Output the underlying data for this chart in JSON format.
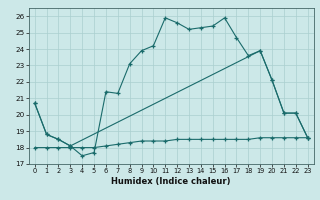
{
  "xlabel": "Humidex (Indice chaleur)",
  "xlim": [
    -0.5,
    23.5
  ],
  "ylim": [
    17,
    26.5
  ],
  "yticks": [
    17,
    18,
    19,
    20,
    21,
    22,
    23,
    24,
    25,
    26
  ],
  "xticks": [
    0,
    1,
    2,
    3,
    4,
    5,
    6,
    7,
    8,
    9,
    10,
    11,
    12,
    13,
    14,
    15,
    16,
    17,
    18,
    19,
    20,
    21,
    22,
    23
  ],
  "bg_color": "#cce8e8",
  "line_color": "#1a6b6b",
  "grid_color": "#aacfcf",
  "lines": [
    {
      "x": [
        0,
        1,
        2,
        3,
        4,
        5,
        6,
        7,
        8,
        9,
        10,
        11,
        12,
        13,
        14,
        15,
        16,
        17,
        18,
        19,
        20,
        21,
        22,
        23
      ],
      "y": [
        20.7,
        18.8,
        18.5,
        18.1,
        17.5,
        17.7,
        21.4,
        21.3,
        23.1,
        23.9,
        24.2,
        25.9,
        25.6,
        25.2,
        25.3,
        25.4,
        25.9,
        24.7,
        23.6,
        23.9,
        22.1,
        20.1,
        20.1,
        18.6
      ]
    },
    {
      "x": [
        0,
        1,
        2,
        3,
        19,
        20,
        21,
        22,
        23
      ],
      "y": [
        20.7,
        18.8,
        18.5,
        18.1,
        23.9,
        22.1,
        20.1,
        20.1,
        18.6
      ]
    },
    {
      "x": [
        0,
        1,
        2,
        3,
        4,
        5,
        6,
        7,
        8,
        9,
        10,
        11,
        12,
        13,
        14,
        15,
        16,
        17,
        18,
        19,
        20,
        21,
        22,
        23
      ],
      "y": [
        18.0,
        18.0,
        18.0,
        18.0,
        18.0,
        18.0,
        18.1,
        18.2,
        18.3,
        18.4,
        18.4,
        18.4,
        18.5,
        18.5,
        18.5,
        18.5,
        18.5,
        18.5,
        18.5,
        18.6,
        18.6,
        18.6,
        18.6,
        18.6
      ]
    }
  ]
}
